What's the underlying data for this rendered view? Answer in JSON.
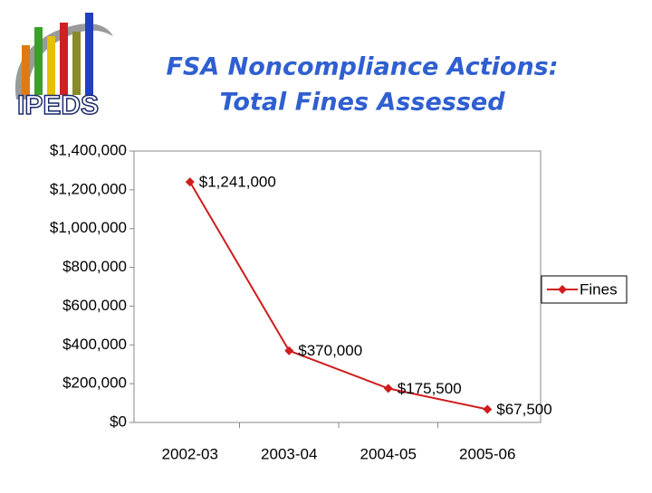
{
  "logo": {
    "text": "IPEDS"
  },
  "chart_data": {
    "type": "line",
    "title": [
      "FSA Noncompliance Actions:",
      "Total Fines Assessed"
    ],
    "categories": [
      "2002-03",
      "2003-04",
      "2004-05",
      "2005-06"
    ],
    "series": [
      {
        "name": "Fines",
        "color": "#d01c1c",
        "values": [
          1241000,
          370000,
          175500,
          67500
        ],
        "value_labels": [
          "$1,241,000",
          "$370,000",
          "$175,500",
          "$67,500"
        ]
      }
    ],
    "ylim": [
      0,
      1400000
    ],
    "yticks": [
      {
        "value": 0,
        "label": "$0"
      },
      {
        "value": 200000,
        "label": "$200,000"
      },
      {
        "value": 400000,
        "label": "$400,000"
      },
      {
        "value": 600000,
        "label": "$600,000"
      },
      {
        "value": 800000,
        "label": "$800,000"
      },
      {
        "value": 1000000,
        "label": "$1,000,000"
      },
      {
        "value": 1200000,
        "label": "$1,200,000"
      },
      {
        "value": 1400000,
        "label": "$1,400,000"
      }
    ],
    "grid": false,
    "legend": "right"
  }
}
